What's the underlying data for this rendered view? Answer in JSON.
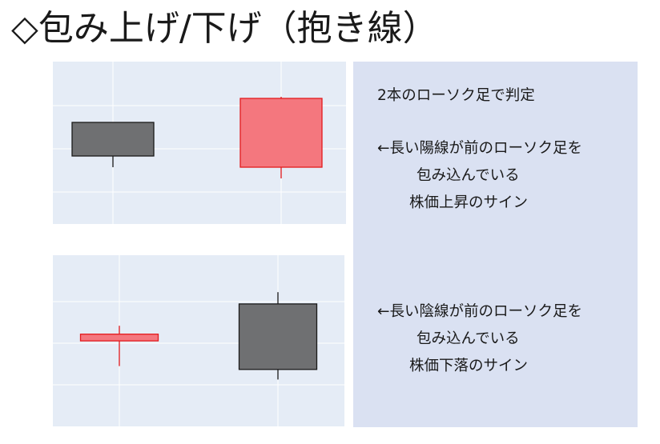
{
  "title": "◇包み上げ/下げ（抱き線）",
  "panel": {
    "heading": "2本のローソク足で判定",
    "engulfing_up": {
      "line1": "←長い陽線が前のローソク足を",
      "line2": "包み込んでいる",
      "line3": "株価上昇のサイン"
    },
    "engulfing_down": {
      "line1": "←長い陰線が前のローソク足を",
      "line2": "包み込んでいる",
      "line3": "株価下落のサイン"
    }
  },
  "colors": {
    "bullish_fill": "#f4777e",
    "bullish_line": "#e31a1c",
    "bearish_fill": "#6f7072",
    "bearish_line": "#1a1a1a",
    "plot_bg": "#e5ecf6",
    "panel_bg": "#dae1f2"
  },
  "chart_data": [
    {
      "type": "candlestick",
      "name": "bullish-engulfing",
      "ylim": [
        0,
        100
      ],
      "grid": true,
      "candles": [
        {
          "direction": "down",
          "open": 62,
          "close": 41,
          "high": 62,
          "low": 34
        },
        {
          "direction": "up",
          "open": 34,
          "close": 77,
          "high": 78,
          "low": 27
        }
      ]
    },
    {
      "type": "candlestick",
      "name": "bearish-engulfing",
      "ylim": [
        0,
        100
      ],
      "grid": true,
      "candles": [
        {
          "direction": "up",
          "open": 49,
          "close": 53,
          "high": 58,
          "low": 34
        },
        {
          "direction": "down",
          "open": 71,
          "close": 32,
          "high": 78,
          "low": 26
        }
      ]
    }
  ]
}
